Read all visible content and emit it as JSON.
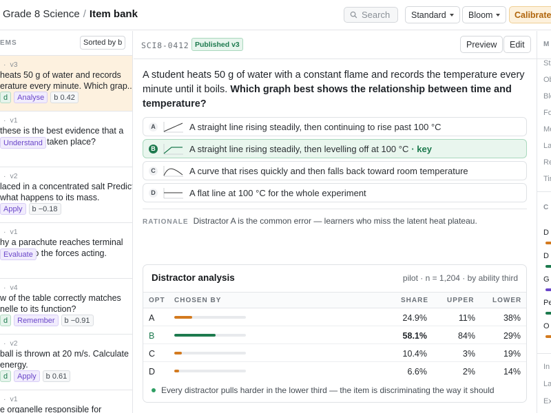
{
  "header": {
    "breadcrumb_parent": "Grade 8 Science",
    "breadcrumb_sep": "/",
    "breadcrumb_current": "Item bank",
    "search_placeholder": "Search",
    "standard_label": "Standard",
    "bloom_label": "Bloom",
    "calibrated_label": "Calibrated"
  },
  "items_panel": {
    "title": "EMS",
    "sort_label": "Sorted by b",
    "items": [
      {
        "dot": "·",
        "version": "v3",
        "stem": "heats 50 g of water and records erature every minute. Which grap...",
        "tags": [
          {
            "text": "d",
            "kind": "green"
          },
          {
            "text": "Analyse",
            "kind": "purple"
          },
          {
            "text": "b 0.42",
            "kind": "gray"
          }
        ]
      },
      {
        "dot": "·",
        "version": "v1",
        "stem": "these is the best evidence that a change has taken place?",
        "tags": [
          {
            "text": "Understand",
            "kind": "purple"
          }
        ]
      },
      {
        "dot": "·",
        "version": "v2",
        "stem": "laced in a concentrated salt Predict what happens to its mass.",
        "tags": [
          {
            "text": "Apply",
            "kind": "purple"
          },
          {
            "text": "b −0.18",
            "kind": "gray"
          }
        ]
      },
      {
        "dot": "·",
        "version": "v1",
        "stem": "hy a parachute reaches terminal eferring to the forces acting.",
        "tags": [
          {
            "text": "Evaluate",
            "kind": "purple"
          }
        ]
      },
      {
        "dot": "·",
        "version": "v4",
        "stem": "w of the table correctly matches nelle to its function?",
        "tags": [
          {
            "text": "d",
            "kind": "green"
          },
          {
            "text": "Remember",
            "kind": "purple"
          },
          {
            "text": "b −0.91",
            "kind": "gray"
          }
        ]
      },
      {
        "dot": "·",
        "version": "v2",
        "stem": "ball is thrown at 20 m/s. Calculate energy.",
        "tags": [
          {
            "text": "d",
            "kind": "green"
          },
          {
            "text": "Apply",
            "kind": "purple"
          },
          {
            "text": "b 0.61",
            "kind": "gray"
          }
        ]
      },
      {
        "dot": "·",
        "version": "v1",
        "stem": "e organelle responsible for",
        "tags": []
      }
    ]
  },
  "detail": {
    "item_id": "SCI8-0412",
    "status": "Published v3",
    "preview_label": "Preview",
    "edit_label": "Edit",
    "question_text": "A student heats 50 g of water with a constant flame and records the temperature every minute until it boils.",
    "question_bold": "Which graph best shows the relationship between time and temperature?",
    "options": [
      {
        "letter": "A",
        "text": "A straight line rising steadily, then continuing to rise past 100 °C",
        "key": false,
        "graph": "rising-line"
      },
      {
        "letter": "B",
        "text": "A straight line rising steadily, then levelling off at 100 °C",
        "key": true,
        "key_label": "· key",
        "graph": "rise-plateau"
      },
      {
        "letter": "C",
        "text": "A curve that rises quickly and then falls back toward room temperature",
        "key": false,
        "graph": "rise-fall"
      },
      {
        "letter": "D",
        "text": "A flat line at 100 °C for the whole experiment",
        "key": false,
        "graph": "flat-line"
      }
    ],
    "rationale_label": "RATIONALE",
    "rationale_text": "Distractor A is the common error — learners who miss the latent heat plateau."
  },
  "distractor_analysis": {
    "title": "Distractor analysis",
    "meta": "pilot · n = 1,204 · by ability third",
    "columns": {
      "opt": "OPT",
      "chosen": "CHOSEN BY",
      "share": "SHARE",
      "upper": "UPPER",
      "lower": "LOWER"
    },
    "rows": [
      {
        "opt": "A",
        "share_pct": 24.9,
        "share": "24.9%",
        "upper": "11%",
        "lower": "38%",
        "color": "#d37a1f",
        "key": false
      },
      {
        "opt": "B",
        "share_pct": 58.1,
        "share": "58.1%",
        "upper": "84%",
        "lower": "29%",
        "color": "#1d7a4e",
        "key": true
      },
      {
        "opt": "C",
        "share_pct": 10.4,
        "share": "10.4%",
        "upper": "3%",
        "lower": "19%",
        "color": "#d37a1f",
        "key": false
      },
      {
        "opt": "D",
        "share_pct": 6.6,
        "share": "6.6%",
        "upper": "2%",
        "lower": "14%",
        "color": "#d37a1f",
        "key": false
      }
    ],
    "note": "Every distractor pulls harder in the lower third — the item is discriminating the way it should"
  },
  "meta_panel": {
    "title": "M",
    "fields": [
      "Sta",
      "Ob",
      "Blo",
      "Fo",
      "Me",
      "La",
      "Re",
      "Tir"
    ],
    "section2_title": "C",
    "section2_rows": [
      {
        "label": "D",
        "color": "#d37a1f"
      },
      {
        "label": "D",
        "color": "#1d7a4e"
      },
      {
        "label": "G",
        "color": "#6a46c9"
      },
      {
        "label": "Pe",
        "color": "#1d7a4e"
      },
      {
        "label": "O",
        "color": "#d37a1f"
      }
    ],
    "footer_fields": [
      "In",
      "La",
      "Ex"
    ]
  }
}
